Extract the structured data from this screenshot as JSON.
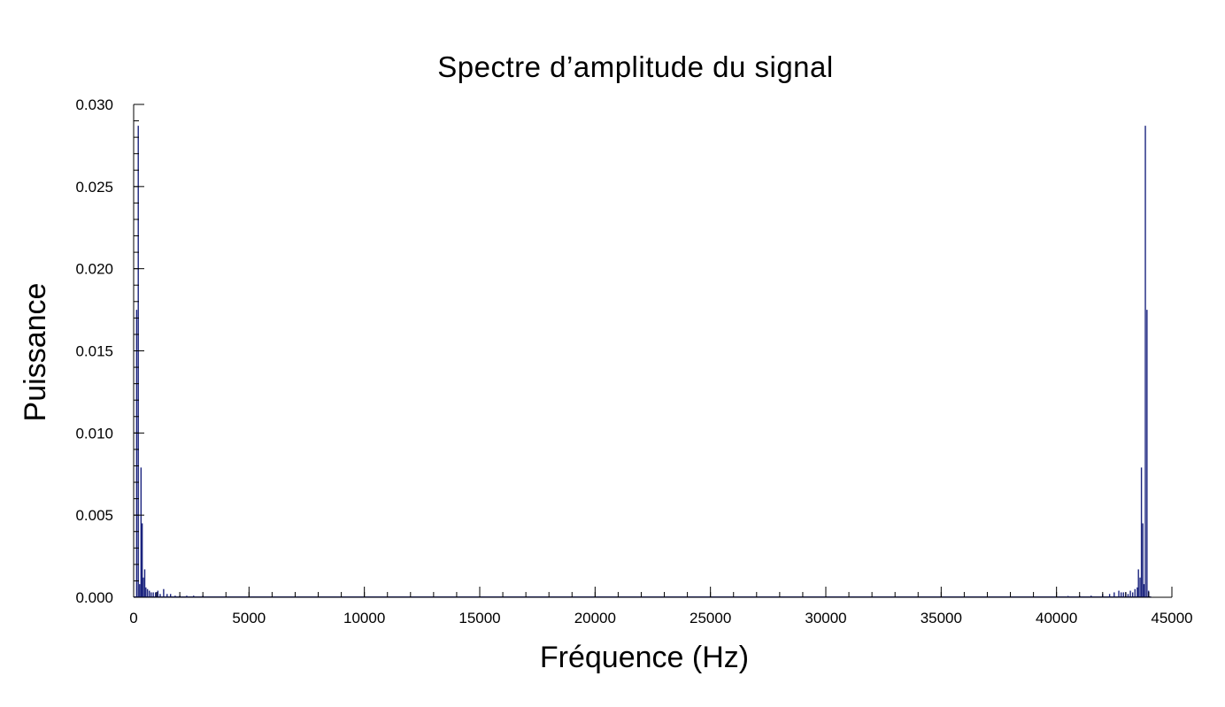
{
  "chart_data": {
    "type": "bar",
    "title": "Spectre d’amplitude du signal",
    "xlabel": "Fréquence (Hz)",
    "ylabel": "Puissance",
    "xlim": [
      0,
      45000
    ],
    "ylim": [
      0,
      0.03
    ],
    "xticks": [
      0,
      5000,
      10000,
      15000,
      20000,
      25000,
      30000,
      35000,
      40000,
      45000
    ],
    "xtick_labels": [
      "0",
      "5000",
      "10000",
      "15000",
      "20000",
      "25000",
      "30000",
      "35000",
      "40000",
      "45000"
    ],
    "yticks": [
      0,
      0.005,
      0.01,
      0.015,
      0.02,
      0.025,
      0.03
    ],
    "ytick_labels": [
      "0.000",
      "0.005",
      "0.010",
      "0.015",
      "0.020",
      "0.025",
      "0.030"
    ],
    "grid": false,
    "color": "#1a237e",
    "series": [
      {
        "x": [
          130,
          200,
          260,
          320,
          370,
          420,
          480,
          530,
          600,
          680,
          760,
          850,
          950,
          1050,
          1150,
          1300,
          1450,
          1600,
          1800,
          2000,
          2300,
          2600,
          3000,
          3500,
          4200,
          5000,
          6000,
          8000,
          10000,
          13000,
          16000,
          19000,
          22000,
          25000,
          28000,
          31000,
          34000,
          37000,
          39000,
          40500,
          41000,
          41500,
          42000,
          42300,
          42500,
          42700,
          42800,
          42900,
          43000,
          43100,
          43200,
          43300,
          43400,
          43500,
          43550,
          43620,
          43680,
          43740,
          43790,
          43850,
          43920,
          43990
        ],
        "y": [
          0.0175,
          0.0287,
          0.0008,
          0.0079,
          0.0045,
          0.0012,
          0.0017,
          0.0006,
          0.0005,
          0.0004,
          0.0003,
          0.0003,
          0.0003,
          0.0004,
          0.0002,
          0.0005,
          0.0002,
          0.0002,
          0.0001,
          0.0001,
          0.0001,
          0.0001,
          0.0001,
          5e-05,
          5e-05,
          4e-05,
          3e-05,
          3e-05,
          2e-05,
          2e-05,
          2e-05,
          2e-05,
          2e-05,
          2e-05,
          2e-05,
          2e-05,
          3e-05,
          3e-05,
          5e-05,
          8e-05,
          0.0001,
          0.0001,
          0.0002,
          0.0002,
          0.0003,
          0.0004,
          0.0003,
          0.0003,
          0.0003,
          0.0002,
          0.0004,
          0.0003,
          0.0005,
          0.0006,
          0.0017,
          0.0012,
          0.0079,
          0.0045,
          0.0008,
          0.0287,
          0.0175,
          0.0004
        ]
      }
    ]
  }
}
